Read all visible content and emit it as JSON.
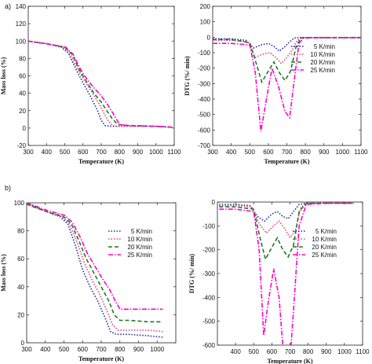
{
  "panel_labels": [
    "a)",
    "b)"
  ],
  "chart_data": [
    {
      "type": "line",
      "panel": "a-left",
      "xlabel": "Temperature (K)",
      "ylabel": "Mass loss (%)",
      "xlim": [
        300,
        1100
      ],
      "ylim": [
        -20,
        140
      ],
      "xticks": [
        300,
        400,
        500,
        600,
        700,
        800,
        900,
        1000,
        1100
      ],
      "yticks": [
        -20,
        0,
        20,
        40,
        60,
        80,
        100,
        120,
        140
      ],
      "legend_position": "none",
      "series": [
        {
          "name": "5 K/min",
          "color": "#1a2aa0",
          "dash": "dot",
          "x": [
            300,
            400,
            480,
            520,
            560,
            600,
            640,
            680,
            700,
            720,
            750,
            800,
            850,
            900,
            1000,
            1090
          ],
          "y": [
            100,
            97,
            93,
            86,
            68,
            52,
            37,
            20,
            9,
            3,
            2,
            2,
            2,
            2,
            2,
            1
          ]
        },
        {
          "name": "10 K/min",
          "color": "#e0407a",
          "dash": "dot",
          "x": [
            300,
            400,
            490,
            530,
            570,
            610,
            650,
            690,
            720,
            740,
            760,
            800,
            900,
            1000,
            1090
          ],
          "y": [
            100,
            97,
            93,
            85,
            68,
            54,
            41,
            27,
            15,
            8,
            3,
            2,
            2,
            2,
            1
          ]
        },
        {
          "name": "20 K/min",
          "color": "#1f7a1f",
          "dash": "dash",
          "x": [
            300,
            400,
            500,
            540,
            580,
            620,
            660,
            700,
            730,
            760,
            790,
            850,
            1000,
            1090
          ],
          "y": [
            100,
            97,
            93,
            85,
            67,
            53,
            40,
            30,
            20,
            11,
            4,
            3,
            2,
            1
          ]
        },
        {
          "name": "25 K/min",
          "color": "#ff00cc",
          "dash": "dashdot",
          "x": [
            300,
            400,
            505,
            545,
            585,
            625,
            665,
            700,
            735,
            770,
            800,
            850,
            1000,
            1090
          ],
          "y": [
            100,
            97,
            93,
            85,
            68,
            55,
            45,
            37,
            27,
            15,
            4,
            3,
            2,
            1
          ]
        }
      ]
    },
    {
      "type": "line",
      "panel": "a-right",
      "xlabel": "Temperature (K)",
      "ylabel": "DTG (%/ min)",
      "xlim": [
        300,
        1100
      ],
      "ylim": [
        -700,
        200
      ],
      "xticks": [
        300,
        400,
        500,
        600,
        700,
        800,
        900,
        1000,
        1100
      ],
      "yticks": [
        -700,
        -600,
        -500,
        -400,
        -300,
        -200,
        -100,
        0,
        100,
        200
      ],
      "legend_position": "right",
      "legend": [
        "5 K/min",
        "10 K/min",
        "20 K/min",
        "25 K/min"
      ],
      "series": [
        {
          "name": "5 K/min",
          "color": "#1a2aa0",
          "dash": "dot",
          "x": [
            300,
            400,
            480,
            520,
            560,
            600,
            630,
            660,
            690,
            715,
            740,
            770,
            800,
            900,
            1000,
            1100
          ],
          "y": [
            -10,
            -10,
            -20,
            -70,
            -50,
            -40,
            -60,
            -90,
            -60,
            -30,
            -5,
            -2,
            -2,
            -2,
            -2,
            -2
          ]
        },
        {
          "name": "10 K/min",
          "color": "#e0407a",
          "dash": "dot",
          "x": [
            300,
            400,
            490,
            530,
            570,
            610,
            640,
            670,
            700,
            730,
            755,
            780,
            800,
            900,
            1000,
            1100
          ],
          "y": [
            -20,
            -20,
            -30,
            -130,
            -110,
            -100,
            -130,
            -170,
            -130,
            -80,
            -20,
            -5,
            -3,
            -3,
            -3,
            -3
          ]
        },
        {
          "name": "20 K/min",
          "color": "#1f7a1f",
          "dash": "dash",
          "x": [
            300,
            400,
            500,
            535,
            565,
            600,
            630,
            660,
            690,
            720,
            750,
            775,
            800,
            900,
            1000,
            1100
          ],
          "y": [
            -15,
            -15,
            -35,
            -170,
            -290,
            -220,
            -160,
            -230,
            -280,
            -220,
            -60,
            -5,
            -3,
            -3,
            -3,
            -3
          ]
        },
        {
          "name": "25 K/min",
          "color": "#ff00cc",
          "dash": "dashdot",
          "x": [
            300,
            400,
            500,
            530,
            560,
            590,
            620,
            655,
            690,
            715,
            740,
            765,
            790,
            900,
            1000,
            1100
          ],
          "y": [
            -40,
            -40,
            -50,
            -230,
            -610,
            -400,
            -200,
            -320,
            -480,
            -520,
            -280,
            -40,
            -5,
            -3,
            -3,
            -3
          ]
        }
      ]
    },
    {
      "type": "line",
      "panel": "b-left",
      "xlabel": "Temperature (K)",
      "ylabel": "Mass loss (%)",
      "xlim": [
        300,
        1100
      ],
      "ylim": [
        0,
        100
      ],
      "xticks": [
        300,
        400,
        500,
        600,
        700,
        800,
        900,
        1000
      ],
      "yticks": [
        0,
        20,
        40,
        60,
        80,
        100
      ],
      "legend_position": "center-right",
      "legend": [
        "5 K/min",
        "10 K/min",
        "20 K/min",
        "25 K/min"
      ],
      "series": [
        {
          "name": "5 K/min",
          "color": "#1a2aa0",
          "dash": "dot",
          "x": [
            300,
            400,
            480,
            520,
            560,
            600,
            640,
            680,
            720,
            750,
            780,
            850,
            950,
            1030
          ],
          "y": [
            100,
            94,
            90,
            85,
            70,
            52,
            40,
            30,
            18,
            8,
            6,
            6,
            5,
            4
          ]
        },
        {
          "name": "10 K/min",
          "color": "#e0407a",
          "dash": "dot",
          "x": [
            300,
            400,
            490,
            530,
            570,
            610,
            650,
            690,
            730,
            760,
            790,
            850,
            950,
            1030
          ],
          "y": [
            99,
            94,
            90,
            85,
            72,
            57,
            45,
            35,
            23,
            13,
            9,
            9,
            9,
            8
          ]
        },
        {
          "name": "20 K/min",
          "color": "#1f7a1f",
          "dash": "dash",
          "x": [
            300,
            400,
            500,
            540,
            580,
            620,
            660,
            700,
            740,
            770,
            800,
            850,
            950,
            1030
          ],
          "y": [
            99,
            94,
            90,
            85,
            73,
            60,
            50,
            40,
            30,
            20,
            16,
            16,
            15,
            15
          ]
        },
        {
          "name": "25 K/min",
          "color": "#ff00cc",
          "dash": "dashdot",
          "x": [
            300,
            400,
            505,
            545,
            585,
            625,
            665,
            705,
            745,
            775,
            800,
            850,
            950,
            1030
          ],
          "y": [
            100,
            95,
            91,
            86,
            76,
            64,
            55,
            46,
            38,
            30,
            24,
            24,
            24,
            24
          ]
        }
      ]
    },
    {
      "type": "line",
      "panel": "b-right",
      "xlabel": "Temperature (K)",
      "ylabel": "DTG (%/ min)",
      "xlim": [
        300,
        1100
      ],
      "ylim": [
        -600,
        0
      ],
      "xticks": [
        400,
        500,
        600,
        700,
        800,
        900,
        1000,
        1100
      ],
      "yticks": [
        -600,
        -500,
        -400,
        -300,
        -200,
        -100,
        0
      ],
      "legend_position": "right",
      "legend": [
        "5 K/min",
        "10 K/min",
        "20 K/min",
        "25 K/min"
      ],
      "series": [
        {
          "name": "5 K/min",
          "color": "#1a2aa0",
          "dash": "dot",
          "x": [
            310,
            400,
            480,
            520,
            560,
            600,
            630,
            660,
            690,
            720,
            750,
            790,
            850,
            1000,
            1050
          ],
          "y": [
            -10,
            -10,
            -15,
            -60,
            -80,
            -50,
            -40,
            -60,
            -70,
            -40,
            -10,
            -5,
            -5,
            -5,
            -5
          ]
        },
        {
          "name": "10 K/min",
          "color": "#e0407a",
          "dash": "dot",
          "x": [
            310,
            400,
            490,
            530,
            570,
            610,
            640,
            670,
            700,
            730,
            760,
            800,
            850,
            1000,
            1050
          ],
          "y": [
            -15,
            -15,
            -20,
            -90,
            -130,
            -100,
            -80,
            -110,
            -150,
            -120,
            -20,
            -5,
            -5,
            -5,
            -5
          ]
        },
        {
          "name": "20 K/min",
          "color": "#1f7a1f",
          "dash": "dash",
          "x": [
            310,
            400,
            500,
            535,
            565,
            600,
            630,
            660,
            690,
            720,
            750,
            790,
            850,
            1000,
            1050
          ],
          "y": [
            -20,
            -20,
            -30,
            -150,
            -240,
            -190,
            -150,
            -200,
            -230,
            -180,
            -40,
            -5,
            -5,
            -5,
            -5
          ]
        },
        {
          "name": "25 K/min",
          "color": "#ff00cc",
          "dash": "dashdot",
          "x": [
            310,
            400,
            500,
            530,
            555,
            580,
            610,
            640,
            670,
            695,
            720,
            750,
            790,
            900,
            1050
          ],
          "y": [
            -30,
            -30,
            -40,
            -200,
            -560,
            -420,
            -280,
            -400,
            -700,
            -720,
            -450,
            -100,
            -10,
            -5,
            -5
          ]
        }
      ]
    }
  ]
}
